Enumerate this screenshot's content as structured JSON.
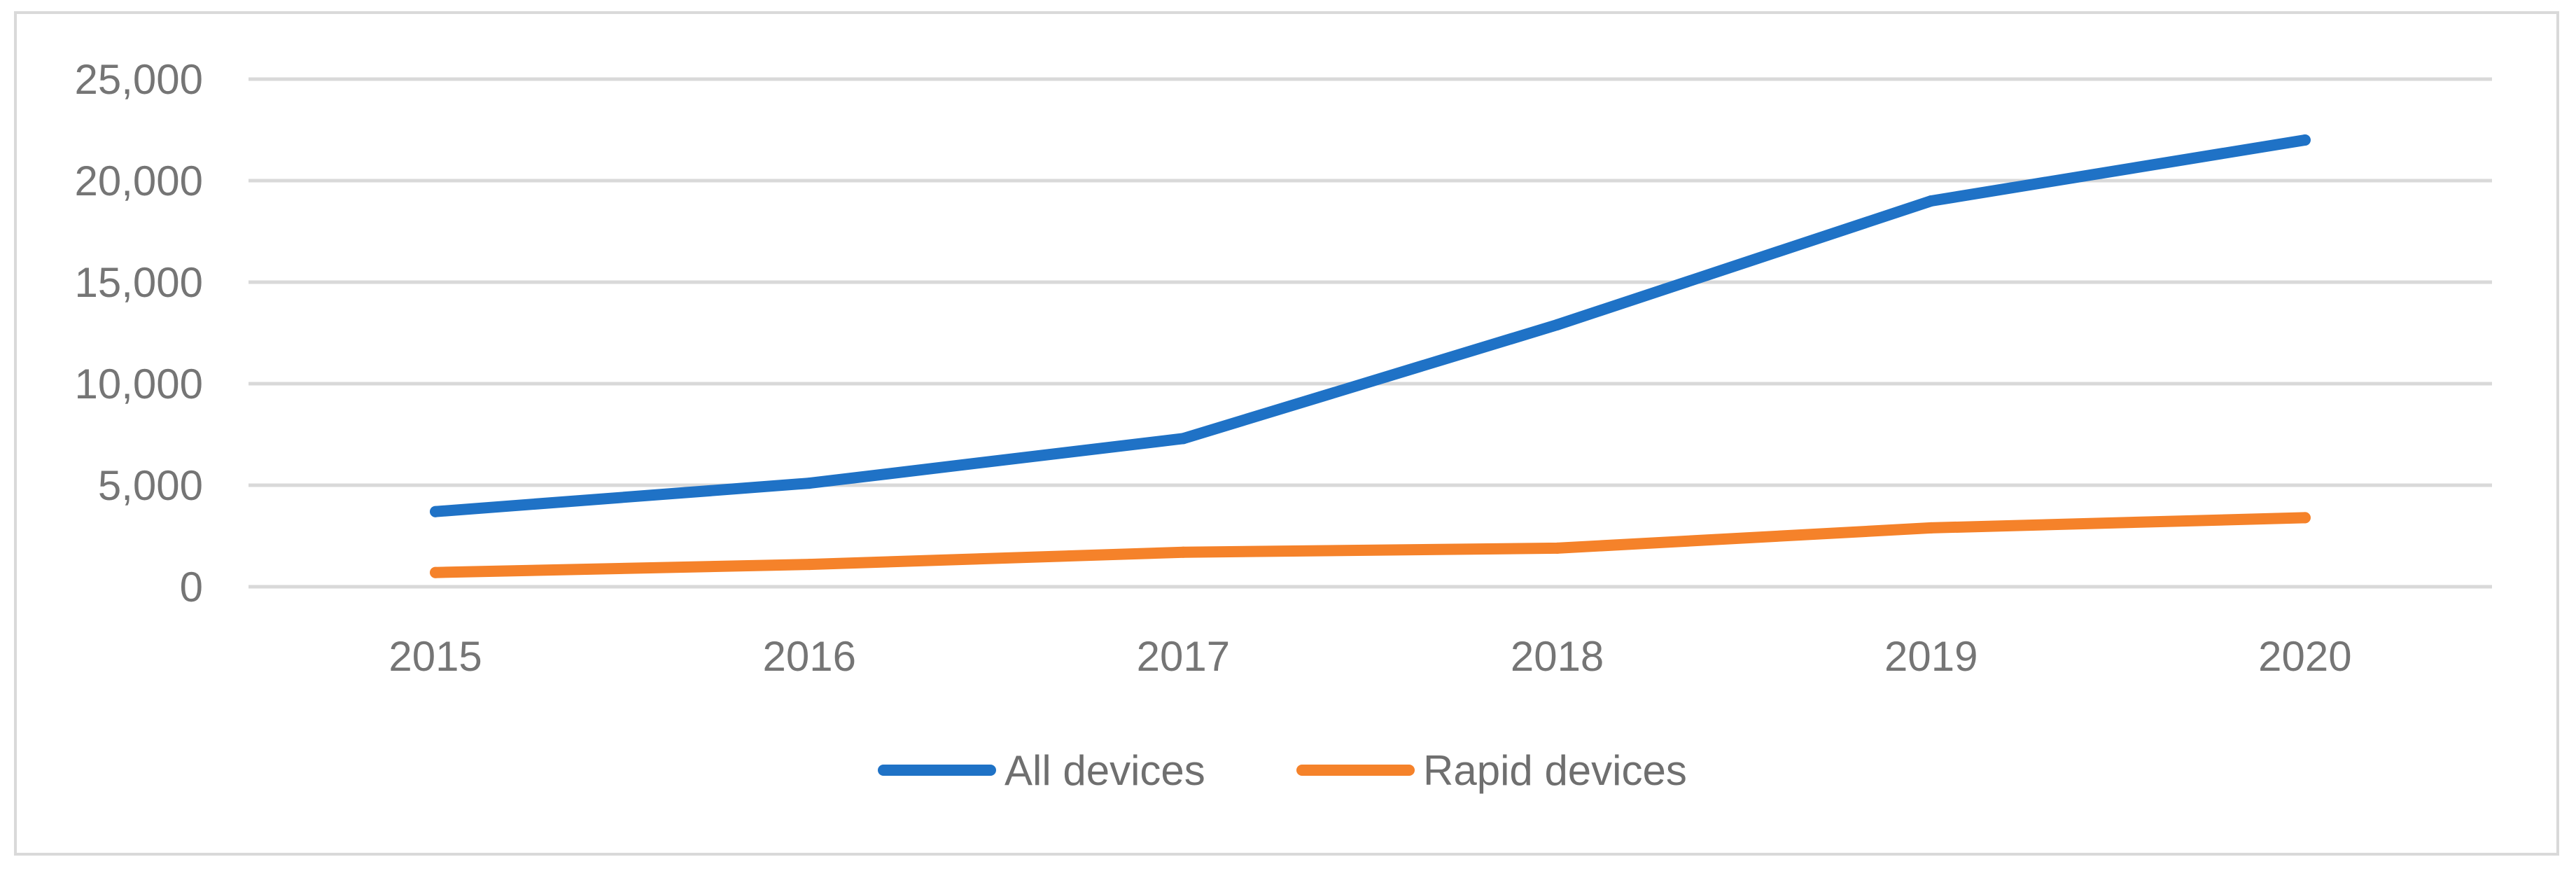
{
  "chart_data": {
    "type": "line",
    "title": "",
    "xlabel": "",
    "ylabel": "",
    "categories": [
      "2015",
      "2016",
      "2017",
      "2018",
      "2019",
      "2020"
    ],
    "ylim": [
      0,
      25000
    ],
    "yticks": [
      0,
      5000,
      10000,
      15000,
      20000,
      25000
    ],
    "ytick_labels": [
      "0",
      "5,000",
      "10,000",
      "15,000",
      "20,000",
      "25,000"
    ],
    "grid": true,
    "legend_position": "bottom",
    "series": [
      {
        "name": "All devices",
        "color": "#1f72c6",
        "values": [
          3700,
          5100,
          7300,
          12900,
          19000,
          22000
        ]
      },
      {
        "name": "Rapid devices",
        "color": "#f5822a",
        "values": [
          700,
          1100,
          1700,
          1900,
          2900,
          3400
        ]
      }
    ]
  }
}
